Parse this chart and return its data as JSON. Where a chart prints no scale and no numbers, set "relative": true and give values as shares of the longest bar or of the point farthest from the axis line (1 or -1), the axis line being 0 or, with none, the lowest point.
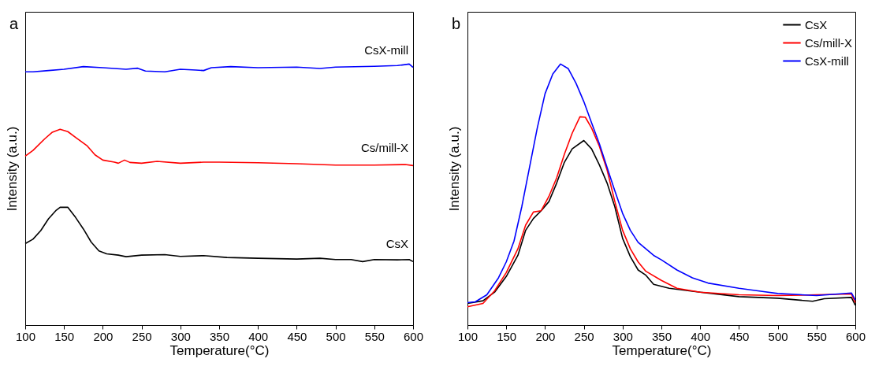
{
  "chart_data": [
    {
      "type": "line",
      "title": "a",
      "xlabel": "Temperature(°C)",
      "ylabel": "Intensity (a.u.)",
      "relative": true,
      "xlim": [
        100,
        600
      ],
      "xticks": [
        100,
        150,
        200,
        250,
        300,
        350,
        400,
        450,
        500,
        550,
        600
      ],
      "legend": false,
      "grid": false,
      "series": [
        {
          "name": "CsX-mill",
          "color": "#0000ff",
          "x": [
            100,
            110,
            130,
            150,
            175,
            200,
            230,
            245,
            255,
            280,
            300,
            320,
            330,
            340,
            365,
            400,
            450,
            480,
            500,
            550,
            580,
            595,
            600
          ],
          "values": [
            0.97,
            0.97,
            0.975,
            0.98,
            0.99,
            0.986,
            0.98,
            0.984,
            0.973,
            0.97,
            0.98,
            0.977,
            0.975,
            0.986,
            0.99,
            0.986,
            0.988,
            0.983,
            0.988,
            0.991,
            0.994,
            1,
            0.987
          ]
        },
        {
          "name": "Cs/mill-X",
          "color": "#ff0000",
          "x": [
            100,
            110,
            125,
            135,
            145,
            155,
            165,
            180,
            190,
            200,
            215,
            220,
            228,
            235,
            250,
            270,
            300,
            330,
            350,
            400,
            450,
            500,
            550,
            590,
            600
          ],
          "values": [
            0.647,
            0.669,
            0.713,
            0.739,
            0.75,
            0.741,
            0.719,
            0.686,
            0.652,
            0.632,
            0.624,
            0.62,
            0.632,
            0.623,
            0.62,
            0.627,
            0.62,
            0.624,
            0.624,
            0.622,
            0.618,
            0.613,
            0.613,
            0.615,
            0.611
          ]
        },
        {
          "name": "CsX",
          "color": "#000000",
          "x": [
            100,
            110,
            120,
            130,
            140,
            145,
            155,
            165,
            175,
            185,
            195,
            205,
            220,
            230,
            250,
            280,
            300,
            330,
            360,
            400,
            450,
            480,
            500,
            520,
            535,
            550,
            580,
            595,
            600
          ],
          "values": [
            0.312,
            0.329,
            0.362,
            0.407,
            0.44,
            0.451,
            0.451,
            0.412,
            0.368,
            0.318,
            0.284,
            0.273,
            0.268,
            0.262,
            0.268,
            0.27,
            0.263,
            0.266,
            0.259,
            0.256,
            0.253,
            0.256,
            0.251,
            0.251,
            0.243,
            0.251,
            0.25,
            0.251,
            0.243
          ]
        }
      ]
    },
    {
      "type": "line",
      "title": "b",
      "xlabel": "Temperature(°C)",
      "ylabel": "Intensity (a.u.)",
      "relative": true,
      "xlim": [
        100,
        600
      ],
      "xticks": [
        100,
        150,
        200,
        250,
        300,
        350,
        400,
        450,
        500,
        550,
        600
      ],
      "legend": "top right",
      "grid": false,
      "series": [
        {
          "name": "CsX",
          "color": "#000000",
          "x": [
            100,
            120,
            135,
            150,
            165,
            175,
            185,
            195,
            205,
            215,
            225,
            235,
            250,
            260,
            270,
            280,
            290,
            300,
            310,
            320,
            330,
            340,
            360,
            400,
            450,
            500,
            545,
            560,
            595,
            600
          ],
          "values": [
            0.083,
            0.093,
            0.126,
            0.186,
            0.267,
            0.363,
            0.408,
            0.438,
            0.473,
            0.544,
            0.624,
            0.675,
            0.707,
            0.675,
            0.614,
            0.544,
            0.453,
            0.332,
            0.262,
            0.211,
            0.191,
            0.156,
            0.141,
            0.126,
            0.109,
            0.103,
            0.091,
            0.101,
            0.106,
            0.076
          ]
        },
        {
          "name": "Cs/mill-X",
          "color": "#ff0000",
          "x": [
            100,
            120,
            135,
            150,
            165,
            175,
            185,
            195,
            205,
            215,
            225,
            235,
            245,
            252,
            260,
            270,
            280,
            290,
            300,
            310,
            320,
            330,
            350,
            370,
            400,
            450,
            500,
            550,
            595,
            600
          ],
          "values": [
            0.07,
            0.083,
            0.131,
            0.201,
            0.292,
            0.383,
            0.433,
            0.438,
            0.493,
            0.564,
            0.655,
            0.735,
            0.798,
            0.796,
            0.755,
            0.685,
            0.594,
            0.473,
            0.363,
            0.292,
            0.242,
            0.206,
            0.171,
            0.141,
            0.126,
            0.116,
            0.113,
            0.116,
            0.119,
            0.086
          ]
        },
        {
          "name": "CsX-mill",
          "color": "#0000ff",
          "x": [
            100,
            110,
            125,
            140,
            150,
            160,
            170,
            180,
            190,
            200,
            210,
            220,
            230,
            240,
            250,
            260,
            270,
            280,
            290,
            300,
            310,
            320,
            330,
            340,
            350,
            370,
            390,
            410,
            450,
            480,
            500,
            550,
            595,
            600
          ],
          "values": [
            0.086,
            0.089,
            0.116,
            0.181,
            0.242,
            0.322,
            0.453,
            0.604,
            0.755,
            0.886,
            0.962,
            1,
            0.982,
            0.926,
            0.856,
            0.775,
            0.695,
            0.604,
            0.514,
            0.428,
            0.363,
            0.317,
            0.292,
            0.267,
            0.25,
            0.211,
            0.181,
            0.161,
            0.141,
            0.129,
            0.121,
            0.113,
            0.123,
            0.096
          ]
        }
      ]
    }
  ]
}
